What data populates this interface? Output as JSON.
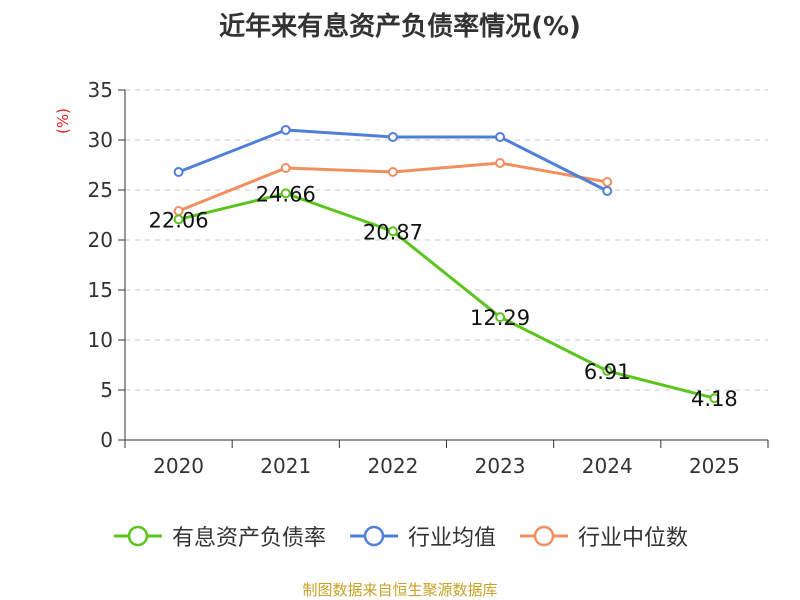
{
  "chart_data": {
    "type": "line",
    "title": "近年来有息资产负债率情况(%)",
    "ylabel": "(%)",
    "xlabel": "",
    "ylim": [
      0,
      35
    ],
    "yticks": [
      0,
      5,
      10,
      15,
      20,
      25,
      30,
      35
    ],
    "grid": true,
    "legend_position": "bottom",
    "categories": [
      "2020",
      "2021",
      "2022",
      "2023",
      "2024",
      "2025"
    ],
    "series": [
      {
        "name": "有息资产负债率",
        "color": "#5bc41f",
        "values": [
          22.06,
          24.66,
          20.87,
          12.29,
          6.91,
          4.18
        ],
        "labels": [
          "22.06",
          "24.66",
          "20.87",
          "12.29",
          "6.91",
          "4.18"
        ]
      },
      {
        "name": "行业均值",
        "color": "#4f7fd8",
        "values": [
          26.8,
          31.0,
          30.3,
          30.3,
          24.9,
          null
        ]
      },
      {
        "name": "行业中位数",
        "color": "#f08f5f",
        "values": [
          22.9,
          27.2,
          26.8,
          27.7,
          25.8,
          null
        ]
      }
    ]
  },
  "source": "制图数据来自恒生聚源数据库"
}
